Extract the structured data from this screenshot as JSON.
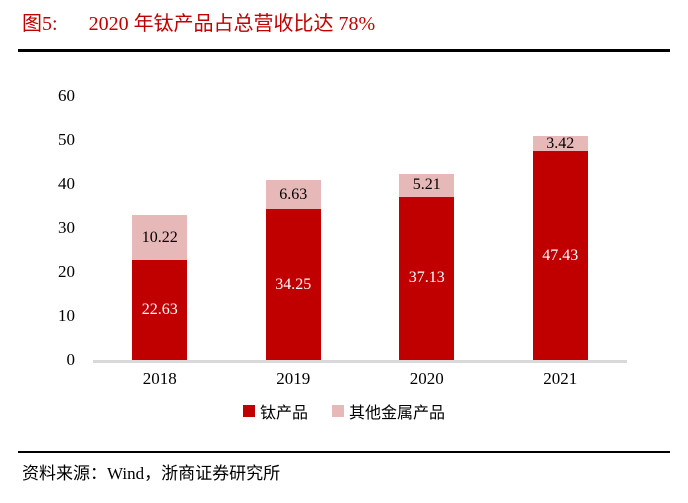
{
  "title": {
    "figure_label": "图5:",
    "text": "2020 年钛产品占总营收比达 78%"
  },
  "chart_data": {
    "type": "bar",
    "stacked": true,
    "categories": [
      "2018",
      "2019",
      "2020",
      "2021"
    ],
    "series": [
      {
        "name": "钛产品",
        "color": "#C00000",
        "label_color": "#FFFFFF",
        "values": [
          22.63,
          34.25,
          37.13,
          47.43
        ]
      },
      {
        "name": "其他金属产品",
        "color": "#E7B8B8",
        "label_color": "#000000",
        "values": [
          10.22,
          6.63,
          5.21,
          3.42
        ]
      }
    ],
    "y_ticks": [
      0,
      10,
      20,
      30,
      40,
      50,
      60
    ],
    "ylim": [
      0,
      60
    ],
    "grid": false,
    "legend_position": "bottom",
    "xlabel": "",
    "ylabel": ""
  },
  "source": {
    "text": "资料来源：Wind，浙商证券研究所"
  },
  "colors": {
    "title_red": "#C00000",
    "bar_primary": "#C00000",
    "bar_secondary": "#E7B8B8",
    "axis_line": "#D9D9D9",
    "divider": "#000000"
  }
}
